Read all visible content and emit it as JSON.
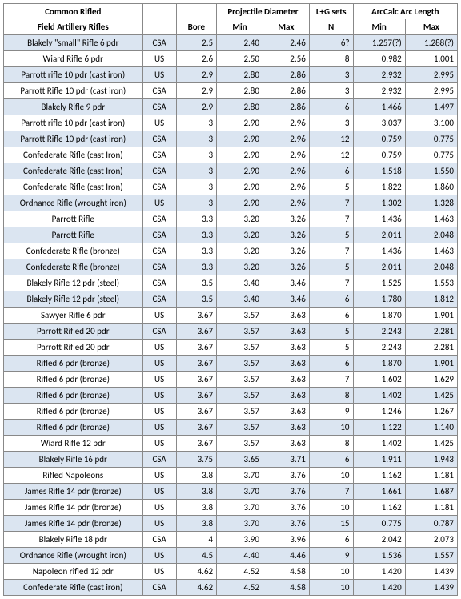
{
  "headers": {
    "group_title_1": "Common Rifled",
    "group_title_2": "Field Artillery Rifles",
    "proj_diam": "Projectile Diameter",
    "lg_sets": "L+G sets",
    "arccalc": "ArcCalc Arc Length",
    "bore": "Bore",
    "min": "Min",
    "max": "Max",
    "n": "N"
  },
  "rows": [
    {
      "shaded": true,
      "name": "Blakely \"small\" Rifle 6 pdr",
      "side": "CSA",
      "bore": "2.5",
      "pmin": "2.40",
      "pmax": "2.46",
      "n": "6?",
      "amin": "1.257(?)",
      "amax": "1.288(?)"
    },
    {
      "shaded": false,
      "name": "Wiard Rifle 6 pdr",
      "side": "US",
      "bore": "2.6",
      "pmin": "2.50",
      "pmax": "2.56",
      "n": "8",
      "amin": "0.982",
      "amax": "1.001"
    },
    {
      "shaded": true,
      "name": "Parrott rifle 10 pdr (cast iron)",
      "side": "US",
      "bore": "2.9",
      "pmin": "2.80",
      "pmax": "2.86",
      "n": "3",
      "amin": "2.932",
      "amax": "2.995"
    },
    {
      "shaded": false,
      "name": "Parrott Rifle 10 pdr (cast iron)",
      "side": "CSA",
      "bore": "2.9",
      "pmin": "2.80",
      "pmax": "2.86",
      "n": "3",
      "amin": "2.932",
      "amax": "2.995"
    },
    {
      "shaded": true,
      "name": "Blakely Rifle 9 pdr",
      "side": "CSA",
      "bore": "2.9",
      "pmin": "2.80",
      "pmax": "2.86",
      "n": "6",
      "amin": "1.466",
      "amax": "1.497"
    },
    {
      "shaded": false,
      "name": "Parrott rifle 10 pdr (cast iron)",
      "side": "US",
      "bore": "3",
      "pmin": "2.90",
      "pmax": "2.96",
      "n": "3",
      "amin": "3.037",
      "amax": "3.100"
    },
    {
      "shaded": true,
      "name": "Parrott Rifle 10 pdr (cast iron)",
      "side": "CSA",
      "bore": "3",
      "pmin": "2.90",
      "pmax": "2.96",
      "n": "12",
      "amin": "0.759",
      "amax": "0.775"
    },
    {
      "shaded": false,
      "name": "Confederate Rifle (cast Iron)",
      "side": "CSA",
      "bore": "3",
      "pmin": "2.90",
      "pmax": "2.96",
      "n": "12",
      "amin": "0.759",
      "amax": "0.775"
    },
    {
      "shaded": true,
      "name": "Confederate Rifle (cast Iron)",
      "side": "CSA",
      "bore": "3",
      "pmin": "2.90",
      "pmax": "2.96",
      "n": "6",
      "amin": "1.518",
      "amax": "1.550"
    },
    {
      "shaded": false,
      "name": "Confederate Rifle (cast Iron)",
      "side": "CSA",
      "bore": "3",
      "pmin": "2.90",
      "pmax": "2.96",
      "n": "5",
      "amin": "1.822",
      "amax": "1.860"
    },
    {
      "shaded": true,
      "name": "Ordnance Rifle (wrought iron)",
      "side": "US",
      "bore": "3",
      "pmin": "2.90",
      "pmax": "2.96",
      "n": "7",
      "amin": "1.302",
      "amax": "1.328"
    },
    {
      "shaded": false,
      "name": "Parrott Rifle",
      "side": "CSA",
      "bore": "3.3",
      "pmin": "3.20",
      "pmax": "3.26",
      "n": "7",
      "amin": "1.436",
      "amax": "1.463"
    },
    {
      "shaded": true,
      "name": "Parrott Rifle",
      "side": "CSA",
      "bore": "3.3",
      "pmin": "3.20",
      "pmax": "3.26",
      "n": "5",
      "amin": "2.011",
      "amax": "2.048"
    },
    {
      "shaded": false,
      "name": "Confederate Rifle (bronze)",
      "side": "CSA",
      "bore": "3.3",
      "pmin": "3.20",
      "pmax": "3.26",
      "n": "7",
      "amin": "1.436",
      "amax": "1.463"
    },
    {
      "shaded": true,
      "name": "Confederate Rifle (bronze)",
      "side": "CSA",
      "bore": "3.3",
      "pmin": "3.20",
      "pmax": "3.26",
      "n": "5",
      "amin": "2.011",
      "amax": "2.048"
    },
    {
      "shaded": false,
      "name": "Blakely Rifle 12 pdr (steel)",
      "side": "CSA",
      "bore": "3.5",
      "pmin": "3.40",
      "pmax": "3.46",
      "n": "7",
      "amin": "1.525",
      "amax": "1.553"
    },
    {
      "shaded": true,
      "name": "Blakely Rifle 12 pdr (steel)",
      "side": "CSA",
      "bore": "3.5",
      "pmin": "3.40",
      "pmax": "3.46",
      "n": "6",
      "amin": "1.780",
      "amax": "1.812"
    },
    {
      "shaded": false,
      "name": "Sawyer Rifle 6 pdr",
      "side": "US",
      "bore": "3.67",
      "pmin": "3.57",
      "pmax": "3.63",
      "n": "6",
      "amin": "1.870",
      "amax": "1.901"
    },
    {
      "shaded": true,
      "name": "Parrott Rifled 20 pdr",
      "side": "CSA",
      "bore": "3.67",
      "pmin": "3.57",
      "pmax": "3.63",
      "n": "5",
      "amin": "2.243",
      "amax": "2.281"
    },
    {
      "shaded": false,
      "name": "Parrott Rifled 20 pdr",
      "side": "US",
      "bore": "3.67",
      "pmin": "3.57",
      "pmax": "3.63",
      "n": "5",
      "amin": "2.243",
      "amax": "2.281"
    },
    {
      "shaded": true,
      "name": "Rifled 6 pdr (bronze)",
      "side": "US",
      "bore": "3.67",
      "pmin": "3.57",
      "pmax": "3.63",
      "n": "6",
      "amin": "1.870",
      "amax": "1.901"
    },
    {
      "shaded": false,
      "name": "Rifled 6 pdr (bronze)",
      "side": "US",
      "bore": "3.67",
      "pmin": "3.57",
      "pmax": "3.63",
      "n": "7",
      "amin": "1.602",
      "amax": "1.629"
    },
    {
      "shaded": true,
      "name": "Rifled 6 pdr (bronze)",
      "side": "US",
      "bore": "3.67",
      "pmin": "3.57",
      "pmax": "3.63",
      "n": "8",
      "amin": "1.402",
      "amax": "1.425"
    },
    {
      "shaded": false,
      "name": "Rifled 6 pdr (bronze)",
      "side": "US",
      "bore": "3.67",
      "pmin": "3.57",
      "pmax": "3.63",
      "n": "9",
      "amin": "1.246",
      "amax": "1.267"
    },
    {
      "shaded": true,
      "name": "Rifled 6 pdr (bronze)",
      "side": "US",
      "bore": "3.67",
      "pmin": "3.57",
      "pmax": "3.63",
      "n": "10",
      "amin": "1.122",
      "amax": "1.140"
    },
    {
      "shaded": false,
      "name": "Wiard Rifle 12 pdr",
      "side": "US",
      "bore": "3.67",
      "pmin": "3.57",
      "pmax": "3.63",
      "n": "8",
      "amin": "1.402",
      "amax": "1.425"
    },
    {
      "shaded": true,
      "name": "Blakely Rifle  16 pdr",
      "side": "CSA",
      "bore": "3.75",
      "pmin": "3.65",
      "pmax": "3.71",
      "n": "6",
      "amin": "1.911",
      "amax": "1.943"
    },
    {
      "shaded": false,
      "name": "Rifled Napoleons",
      "side": "US",
      "bore": "3.8",
      "pmin": "3.70",
      "pmax": "3.76",
      "n": "10",
      "amin": "1.162",
      "amax": "1.181"
    },
    {
      "shaded": true,
      "name": "James Rifle 14 pdr (bronze)",
      "side": "US",
      "bore": "3.8",
      "pmin": "3.70",
      "pmax": "3.76",
      "n": "7",
      "amin": "1.661",
      "amax": "1.687"
    },
    {
      "shaded": false,
      "name": "James Rifle 14 pdr (bronze)",
      "side": "US",
      "bore": "3.8",
      "pmin": "3.70",
      "pmax": "3.76",
      "n": "10",
      "amin": "1.162",
      "amax": "1.181"
    },
    {
      "shaded": true,
      "name": "James Rifle 14 pdr (bronze)",
      "side": "US",
      "bore": "3.8",
      "pmin": "3.70",
      "pmax": "3.76",
      "n": "15",
      "amin": "0.775",
      "amax": "0.787"
    },
    {
      "shaded": false,
      "name": "Blakely  Rifle 18 pdr",
      "side": "CSA",
      "bore": "4",
      "pmin": "3.90",
      "pmax": "3.96",
      "n": "6",
      "amin": "2.042",
      "amax": "2.073"
    },
    {
      "shaded": true,
      "name": "Ordnance Rifle (wrought iron)",
      "side": "US",
      "bore": "4.5",
      "pmin": "4.40",
      "pmax": "4.46",
      "n": "9",
      "amin": "1.536",
      "amax": "1.557"
    },
    {
      "shaded": false,
      "name": "Napoleon rifled 12 pdr",
      "side": "US",
      "bore": "4.62",
      "pmin": "4.52",
      "pmax": "4.58",
      "n": "10",
      "amin": "1.420",
      "amax": "1.439"
    },
    {
      "shaded": true,
      "name": "Confederate Rifle (cast iron)",
      "side": "CSA",
      "bore": "4.62",
      "pmin": "4.52",
      "pmax": "4.58",
      "n": "10",
      "amin": "1.420",
      "amax": "1.439"
    }
  ]
}
